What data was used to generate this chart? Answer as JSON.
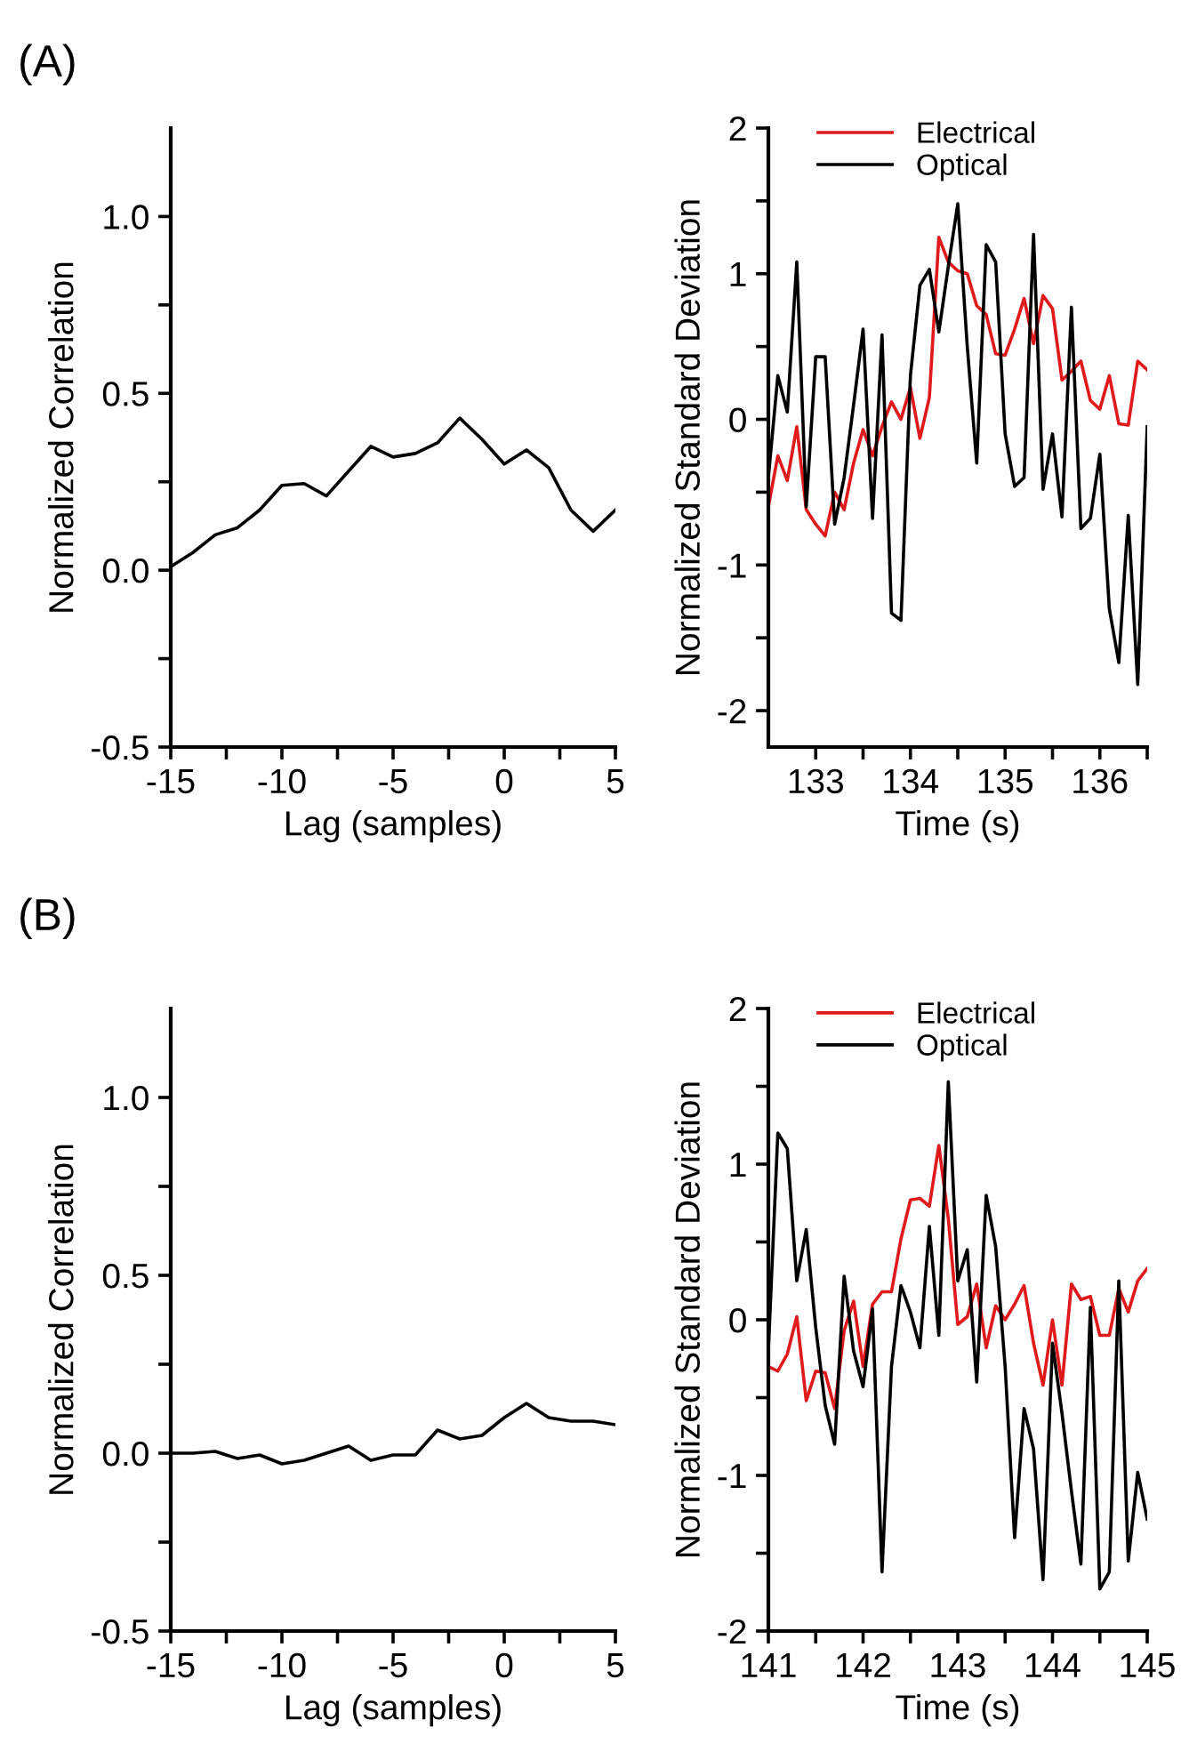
{
  "chart_data": [
    {
      "type": "line",
      "annotations": [
        "(A)"
      ],
      "xlabel": "Lag (samples)",
      "ylabel": "Normalized Correlation",
      "x": [
        -15,
        -14,
        -13,
        -12,
        -11,
        -10,
        -9,
        -8,
        -7,
        -6,
        -5,
        -4,
        -3,
        -2,
        -1,
        0,
        1,
        2,
        3,
        4,
        5
      ],
      "series": [
        {
          "color": "#000000",
          "values": [
            0.01,
            0.05,
            0.1,
            0.12,
            0.17,
            0.24,
            0.245,
            0.21,
            0.28,
            0.35,
            0.32,
            0.33,
            0.36,
            0.43,
            0.37,
            0.3,
            0.34,
            0.29,
            0.17,
            0.11,
            0.17
          ]
        }
      ],
      "xlim": [
        -15,
        5
      ],
      "ylim": [
        -0.5,
        1.25
      ],
      "xticks": [
        -15,
        {
          "value": -12.5,
          "label": null
        },
        -10,
        {
          "value": -7.5,
          "label": null
        },
        -5,
        {
          "value": -2.5,
          "label": null
        },
        0,
        {
          "value": 2.5,
          "label": null
        },
        5
      ],
      "yticks": [
        {
          "value": -0.5,
          "label": "-0.5"
        },
        {
          "value": -0.25,
          "label": null
        },
        {
          "value": 0,
          "label": "0.0"
        },
        {
          "value": 0.25,
          "label": null
        },
        {
          "value": 0.5,
          "label": "0.5"
        },
        {
          "value": 0.75,
          "label": null
        },
        {
          "value": 1.0,
          "label": "1.0"
        }
      ],
      "grid": false,
      "legend": false
    },
    {
      "type": "line",
      "xlabel": "Time (s)",
      "ylabel": "Normalized Standard Deviation",
      "x": [
        132.5,
        132.6,
        132.7,
        132.8,
        132.9,
        133.0,
        133.1,
        133.2,
        133.3,
        133.4,
        133.5,
        133.6,
        133.7,
        133.8,
        133.9,
        134.0,
        134.1,
        134.2,
        134.3,
        134.4,
        134.5,
        134.6,
        134.7,
        134.8,
        134.9,
        135.0,
        135.1,
        135.2,
        135.3,
        135.4,
        135.5,
        135.6,
        135.7,
        135.8,
        135.9,
        136.0,
        136.1,
        136.2,
        136.3,
        136.4,
        136.5
      ],
      "series": [
        {
          "name": "Electrical",
          "color": "#e0191b",
          "values": [
            -0.6,
            -0.25,
            -0.42,
            -0.05,
            -0.62,
            -0.72,
            -0.8,
            -0.5,
            -0.62,
            -0.3,
            -0.07,
            -0.25,
            -0.05,
            0.12,
            0.0,
            0.22,
            -0.13,
            0.15,
            1.25,
            1.08,
            1.02,
            1.0,
            0.78,
            0.72,
            0.45,
            0.44,
            0.62,
            0.83,
            0.52,
            0.85,
            0.76,
            0.27,
            0.33,
            0.4,
            0.13,
            0.07,
            0.3,
            -0.03,
            -0.04,
            0.4,
            0.34
          ]
        },
        {
          "name": "Optical",
          "color": "#000000",
          "values": [
            -0.4,
            0.3,
            0.05,
            1.08,
            -0.6,
            0.43,
            0.43,
            -0.72,
            -0.4,
            0.1,
            0.62,
            -0.68,
            0.58,
            -1.33,
            -1.38,
            0.3,
            0.92,
            1.03,
            0.6,
            1.05,
            1.48,
            0.5,
            -0.3,
            1.2,
            1.08,
            -0.1,
            -0.46,
            -0.4,
            1.27,
            -0.48,
            -0.1,
            -0.67,
            0.77,
            -0.75,
            -0.68,
            -0.24,
            -1.3,
            -1.67,
            -0.66,
            -1.82,
            -0.05
          ]
        }
      ],
      "xlim": [
        132.5,
        136.5
      ],
      "ylim": [
        -2.25,
        2
      ],
      "xticks": [
        133,
        {
          "value": 133.5,
          "label": null
        },
        134,
        {
          "value": 134.5,
          "label": null
        },
        135,
        {
          "value": 135.5,
          "label": null
        },
        136,
        {
          "value": 136.5,
          "label": null
        }
      ],
      "yticks": [
        -2,
        {
          "value": -1.5,
          "label": null
        },
        -1,
        {
          "value": -0.5,
          "label": null
        },
        0,
        {
          "value": 0.5,
          "label": null
        },
        1,
        {
          "value": 1.5,
          "label": null
        },
        2
      ],
      "grid": false,
      "legend": "top left"
    },
    {
      "type": "line",
      "annotations": [
        "(B)"
      ],
      "xlabel": "Lag (samples)",
      "ylabel": "Normalized Correlation",
      "x": [
        -15,
        -14,
        -13,
        -12,
        -11,
        -10,
        -9,
        -8,
        -7,
        -6,
        -5,
        -4,
        -3,
        -2,
        -1,
        0,
        1,
        2,
        3,
        4,
        5
      ],
      "series": [
        {
          "color": "#000000",
          "values": [
            0.0,
            0.0,
            0.005,
            -0.015,
            -0.005,
            -0.03,
            -0.02,
            0.0,
            0.02,
            -0.02,
            -0.005,
            -0.005,
            0.065,
            0.04,
            0.05,
            0.1,
            0.14,
            0.1,
            0.09,
            0.09,
            0.08
          ]
        }
      ],
      "xlim": [
        -15,
        5
      ],
      "ylim": [
        -0.5,
        1.25
      ],
      "xticks": [
        -15,
        {
          "value": -12.5,
          "label": null
        },
        -10,
        {
          "value": -7.5,
          "label": null
        },
        -5,
        {
          "value": -2.5,
          "label": null
        },
        0,
        {
          "value": 2.5,
          "label": null
        },
        5
      ],
      "yticks": [
        {
          "value": -0.5,
          "label": "-0.5"
        },
        {
          "value": -0.25,
          "label": null
        },
        {
          "value": 0,
          "label": "0.0"
        },
        {
          "value": 0.25,
          "label": null
        },
        {
          "value": 0.5,
          "label": "0.5"
        },
        {
          "value": 0.75,
          "label": null
        },
        {
          "value": 1.0,
          "label": "1.0"
        }
      ],
      "grid": false,
      "legend": false
    },
    {
      "type": "line",
      "xlabel": "Time (s)",
      "ylabel": "Normalized Standard Deviation",
      "x": [
        141.0,
        141.1,
        141.2,
        141.3,
        141.4,
        141.5,
        141.6,
        141.7,
        141.8,
        141.9,
        142.0,
        142.1,
        142.2,
        142.3,
        142.4,
        142.5,
        142.6,
        142.7,
        142.8,
        142.9,
        143.0,
        143.1,
        143.2,
        143.3,
        143.4,
        143.5,
        143.6,
        143.7,
        143.8,
        143.9,
        144.0,
        144.1,
        144.2,
        144.3,
        144.4,
        144.5,
        144.6,
        144.7,
        144.8,
        144.9,
        145.0
      ],
      "series": [
        {
          "name": "Electrical",
          "color": "#e0191b",
          "values": [
            -0.3,
            -0.33,
            -0.22,
            0.02,
            -0.52,
            -0.33,
            -0.34,
            -0.57,
            -0.07,
            0.12,
            -0.3,
            0.1,
            0.18,
            0.18,
            0.52,
            0.77,
            0.78,
            0.73,
            1.12,
            0.65,
            -0.03,
            0.02,
            0.23,
            -0.18,
            0.09,
            0.0,
            0.1,
            0.22,
            -0.15,
            -0.42,
            0.0,
            -0.42,
            0.23,
            0.13,
            0.15,
            -0.1,
            -0.1,
            0.2,
            0.05,
            0.25,
            0.33
          ]
        },
        {
          "name": "Optical",
          "color": "#000000",
          "values": [
            -0.2,
            1.2,
            1.1,
            0.25,
            0.58,
            -0.05,
            -0.55,
            -0.8,
            0.28,
            -0.2,
            -0.43,
            0.07,
            -1.62,
            -0.3,
            0.22,
            0.05,
            -0.18,
            0.6,
            -0.1,
            1.53,
            0.25,
            0.45,
            -0.4,
            0.8,
            0.47,
            -0.3,
            -1.4,
            -0.57,
            -0.83,
            -1.67,
            -0.15,
            -0.6,
            -1.1,
            -1.57,
            0.08,
            -1.73,
            -1.62,
            0.25,
            -1.55,
            -0.98,
            -1.28
          ]
        }
      ],
      "xlim": [
        141,
        145
      ],
      "ylim": [
        -2,
        2
      ],
      "xticks": [
        141,
        {
          "value": 141.5,
          "label": null
        },
        142,
        {
          "value": 142.5,
          "label": null
        },
        143,
        {
          "value": 143.5,
          "label": null
        },
        144,
        {
          "value": 144.5,
          "label": null
        },
        145
      ],
      "yticks": [
        -2,
        {
          "value": -1.5,
          "label": null
        },
        -1,
        {
          "value": -0.5,
          "label": null
        },
        0,
        {
          "value": 0.5,
          "label": null
        },
        1,
        {
          "value": 1.5,
          "label": null
        },
        2
      ],
      "grid": false,
      "legend": "top left"
    }
  ]
}
